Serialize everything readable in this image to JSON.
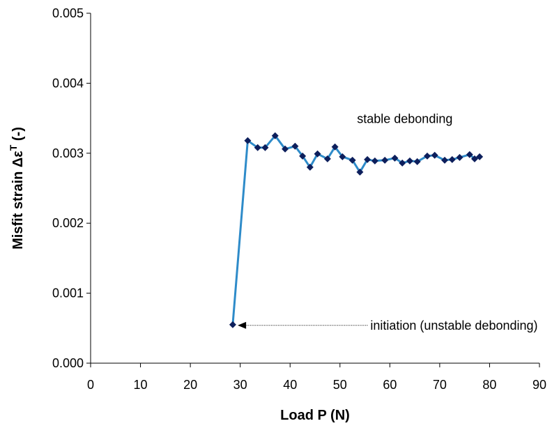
{
  "chart_data": {
    "type": "line",
    "title": "",
    "xlabel": "Load  P  (N)",
    "ylabel": {
      "prefix": "Misfit strain  Δε",
      "superscript": "T",
      "suffix": " (-)"
    },
    "xlim": [
      0,
      90
    ],
    "ylim": [
      0,
      0.005
    ],
    "x_ticks": [
      "0",
      "10",
      "20",
      "30",
      "40",
      "50",
      "60",
      "70",
      "80",
      "90"
    ],
    "y_ticks": [
      "0.000",
      "0.001",
      "0.002",
      "0.003",
      "0.004",
      "0.005"
    ],
    "grid": false,
    "legend": "none",
    "series": [
      {
        "color": "#2e8bc9",
        "marker_color": "#0d1f5c",
        "marker": "diamond",
        "x": [
          28.5,
          31.5,
          33.5,
          35,
          37,
          39,
          41,
          42.5,
          44,
          45.5,
          47.5,
          49,
          50.5,
          52.5,
          54,
          55.5,
          57,
          59,
          61,
          62.5,
          64,
          65.5,
          67.5,
          69,
          71,
          72.5,
          74,
          76,
          77,
          78
        ],
        "y": [
          0.00055,
          0.00318,
          0.00308,
          0.00308,
          0.00325,
          0.00306,
          0.0031,
          0.00296,
          0.0028,
          0.00299,
          0.00292,
          0.00309,
          0.00295,
          0.0029,
          0.00273,
          0.00291,
          0.00289,
          0.0029,
          0.00293,
          0.00286,
          0.00289,
          0.00288,
          0.00296,
          0.00297,
          0.0029,
          0.00291,
          0.00294,
          0.00298,
          0.00292,
          0.00295
        ]
      }
    ],
    "annotations": [
      {
        "text": "stable debonding",
        "x": 63,
        "y": 0.00343
      },
      {
        "text": "initiation (unstable debonding)",
        "x": 60,
        "y": 0.00055,
        "arrow_to": [
          29.5,
          0.00055
        ]
      }
    ]
  }
}
